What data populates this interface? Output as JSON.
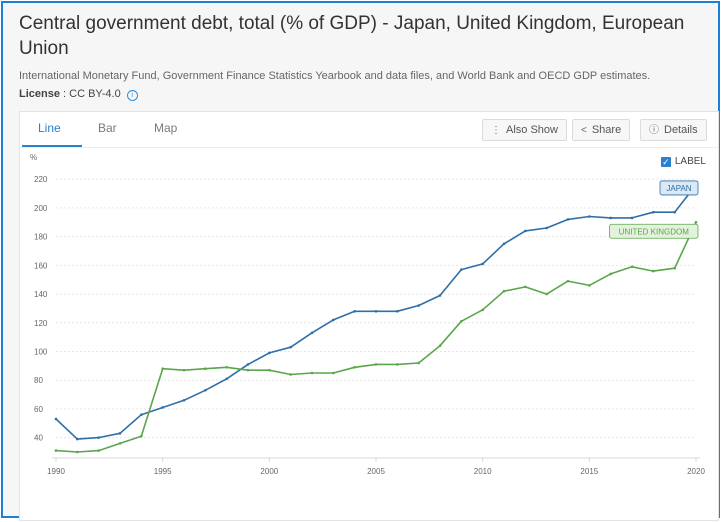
{
  "page": {
    "title": "Central government debt, total (% of GDP) - Japan, United Kingdom, European Union",
    "source": "International Monetary Fund, Government Finance Statistics Yearbook and data files, and World Bank and OECD GDP estimates.",
    "license_label": "License",
    "license_value": " : CC BY-4.0",
    "info_icon": "i"
  },
  "tabs": [
    {
      "label": "Line"
    },
    {
      "label": "Bar"
    },
    {
      "label": "Map"
    }
  ],
  "toolbar": {
    "also_show": "Also Show",
    "share": "Share",
    "details": "Details"
  },
  "legend": {
    "checkbox_mark": "✓",
    "label": "LABEL"
  },
  "colors": {
    "japan": "#2e6fa7",
    "uk": "#5aa64a",
    "accent": "#2b7fcf"
  },
  "chart_data": {
    "type": "line",
    "ylabel": "%",
    "xlabel": "",
    "ylim": [
      30,
      225
    ],
    "yticks": [
      40,
      60,
      80,
      100,
      120,
      140,
      160,
      180,
      200,
      220
    ],
    "xticks": [
      1990,
      1995,
      2000,
      2005,
      2010,
      2015,
      2020
    ],
    "x": [
      1990,
      1991,
      1992,
      1993,
      1994,
      1995,
      1996,
      1997,
      1998,
      1999,
      2000,
      2001,
      2002,
      2003,
      2004,
      2005,
      2006,
      2007,
      2008,
      2009,
      2010,
      2011,
      2012,
      2013,
      2014,
      2015,
      2016,
      2017,
      2018,
      2019,
      2020
    ],
    "series": [
      {
        "name": "JAPAN",
        "color": "#2e6fa7",
        "values": [
          53,
          39,
          40,
          43,
          56,
          61,
          66,
          73,
          81,
          91,
          99,
          103,
          113,
          122,
          128,
          128,
          128,
          132,
          139,
          157,
          161,
          175,
          184,
          186,
          192,
          194,
          193,
          193,
          197,
          197,
          216
        ]
      },
      {
        "name": "UNITED KINGDOM",
        "color": "#5aa64a",
        "values": [
          31,
          30,
          31,
          36,
          41,
          88,
          87,
          88,
          89,
          87,
          87,
          84,
          85,
          85,
          89,
          91,
          91,
          92,
          104,
          121,
          129,
          142,
          145,
          140,
          149,
          146,
          154,
          159,
          156,
          158,
          190
        ]
      }
    ]
  }
}
